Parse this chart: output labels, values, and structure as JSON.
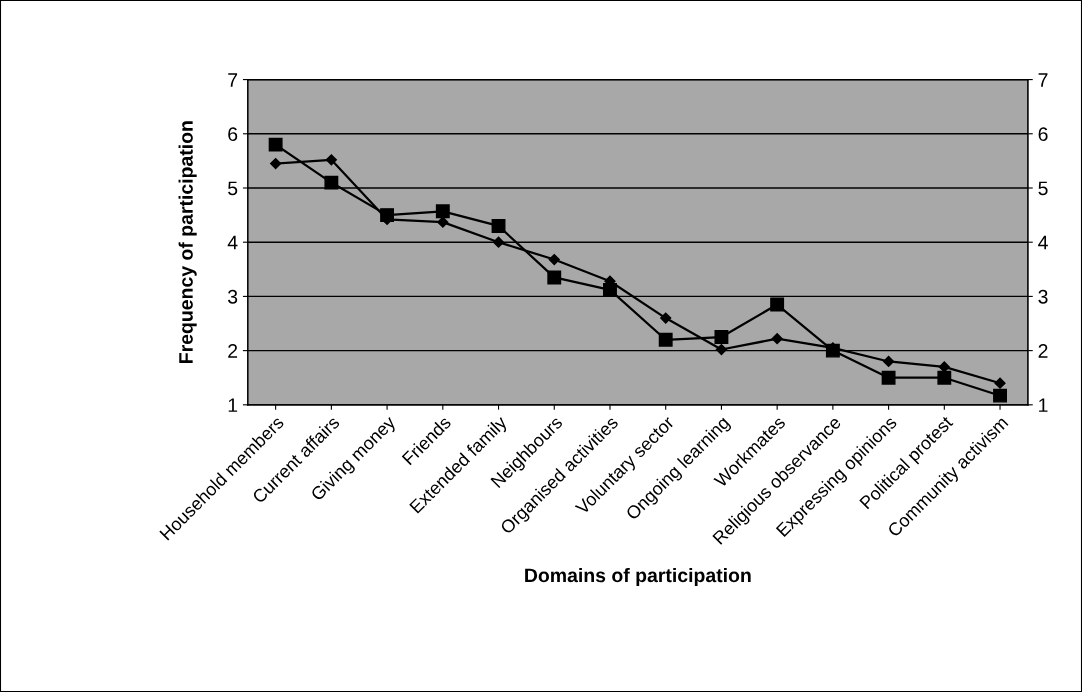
{
  "chart_data": {
    "type": "line",
    "xlabel": "Domains of participation",
    "ylabel": "Frequency of participation",
    "categories": [
      "Household members",
      "Current affairs",
      "Giving money",
      "Friends",
      "Extended family",
      "Neighbours",
      "Organised activities",
      "Voluntary sector",
      "Ongoing learning",
      "Workmates",
      "Religious observance",
      "Expressing opinions",
      "Political protest",
      "Community activism"
    ],
    "series": [
      {
        "color": "#000000",
        "marker": "diamond",
        "values": [
          5.45,
          5.52,
          4.42,
          4.37,
          4.0,
          3.68,
          3.28,
          2.6,
          2.02,
          2.22,
          2.05,
          1.8,
          1.7,
          1.4
        ]
      },
      {
        "color": "#000000",
        "marker": "square",
        "values": [
          5.8,
          5.1,
          4.5,
          4.57,
          4.3,
          3.35,
          3.12,
          2.2,
          2.25,
          2.85,
          2.0,
          1.5,
          1.5,
          1.17
        ]
      }
    ],
    "ylim": [
      1,
      7
    ],
    "yticks": [
      1,
      2,
      3,
      4,
      5,
      6,
      7
    ],
    "y2lim": [
      1,
      7
    ],
    "y2ticks": [
      1,
      2,
      3,
      4,
      5,
      6,
      7
    ],
    "grid": "y",
    "legend": false
  }
}
